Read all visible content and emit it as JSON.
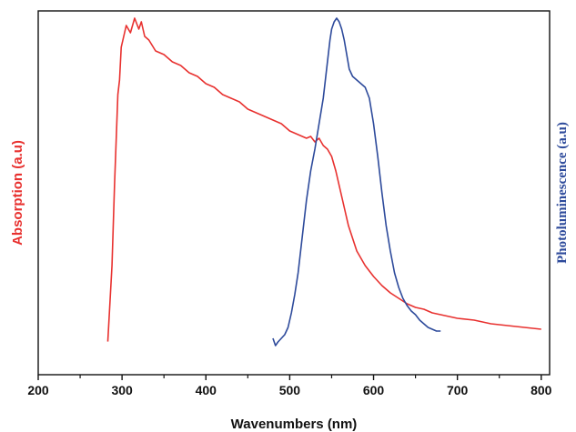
{
  "chart_data": {
    "type": "line",
    "title": "",
    "xlabel": "Wavenumbers (nm)",
    "ylabel_left": "Absorption (a.u)",
    "ylabel_right": "Photoluminescence (a.u)",
    "xlim": [
      200,
      810
    ],
    "ylim": [
      0,
      1
    ],
    "xticks": [
      "200",
      "300",
      "400",
      "500",
      "600",
      "700",
      "800"
    ],
    "grid": false,
    "legend": "none",
    "series": [
      {
        "axis": "left",
        "color": "#e8312f",
        "x": [
          283,
          288,
          291,
          295,
          297,
          299,
          302,
          305,
          310,
          315,
          320,
          323,
          327,
          332,
          340,
          350,
          360,
          370,
          380,
          390,
          400,
          410,
          420,
          430,
          440,
          450,
          460,
          470,
          480,
          490,
          500,
          510,
          520,
          525,
          530,
          535,
          540,
          545,
          550,
          555,
          560,
          565,
          570,
          580,
          590,
          600,
          610,
          620,
          630,
          640,
          650,
          660,
          670,
          680,
          690,
          700,
          720,
          740,
          760,
          780,
          800
        ],
        "y": [
          0.091,
          0.3,
          0.52,
          0.77,
          0.81,
          0.9,
          0.93,
          0.96,
          0.94,
          0.98,
          0.95,
          0.97,
          0.93,
          0.92,
          0.89,
          0.88,
          0.86,
          0.85,
          0.83,
          0.82,
          0.8,
          0.79,
          0.77,
          0.76,
          0.75,
          0.73,
          0.72,
          0.71,
          0.7,
          0.69,
          0.67,
          0.66,
          0.65,
          0.655,
          0.64,
          0.65,
          0.63,
          0.62,
          0.6,
          0.56,
          0.51,
          0.46,
          0.41,
          0.34,
          0.3,
          0.27,
          0.245,
          0.225,
          0.21,
          0.195,
          0.185,
          0.18,
          0.17,
          0.165,
          0.16,
          0.155,
          0.15,
          0.14,
          0.135,
          0.13,
          0.125
        ]
      },
      {
        "axis": "right",
        "color": "#2d4a9b",
        "x": [
          480,
          483,
          486,
          490,
          494,
          498,
          502,
          506,
          510,
          515,
          520,
          525,
          530,
          535,
          540,
          545,
          548,
          550,
          553,
          556,
          559,
          562,
          565,
          568,
          571,
          575,
          580,
          585,
          590,
          595,
          600,
          605,
          610,
          615,
          620,
          625,
          630,
          635,
          640,
          645,
          650,
          655,
          660,
          665,
          670,
          675,
          680
        ],
        "y": [
          0.1,
          0.08,
          0.09,
          0.1,
          0.11,
          0.13,
          0.17,
          0.22,
          0.28,
          0.38,
          0.48,
          0.56,
          0.62,
          0.69,
          0.76,
          0.86,
          0.92,
          0.95,
          0.97,
          0.98,
          0.97,
          0.95,
          0.92,
          0.88,
          0.84,
          0.82,
          0.81,
          0.8,
          0.79,
          0.76,
          0.69,
          0.6,
          0.5,
          0.41,
          0.34,
          0.28,
          0.24,
          0.21,
          0.19,
          0.175,
          0.165,
          0.15,
          0.14,
          0.13,
          0.125,
          0.12,
          0.12
        ]
      }
    ]
  }
}
